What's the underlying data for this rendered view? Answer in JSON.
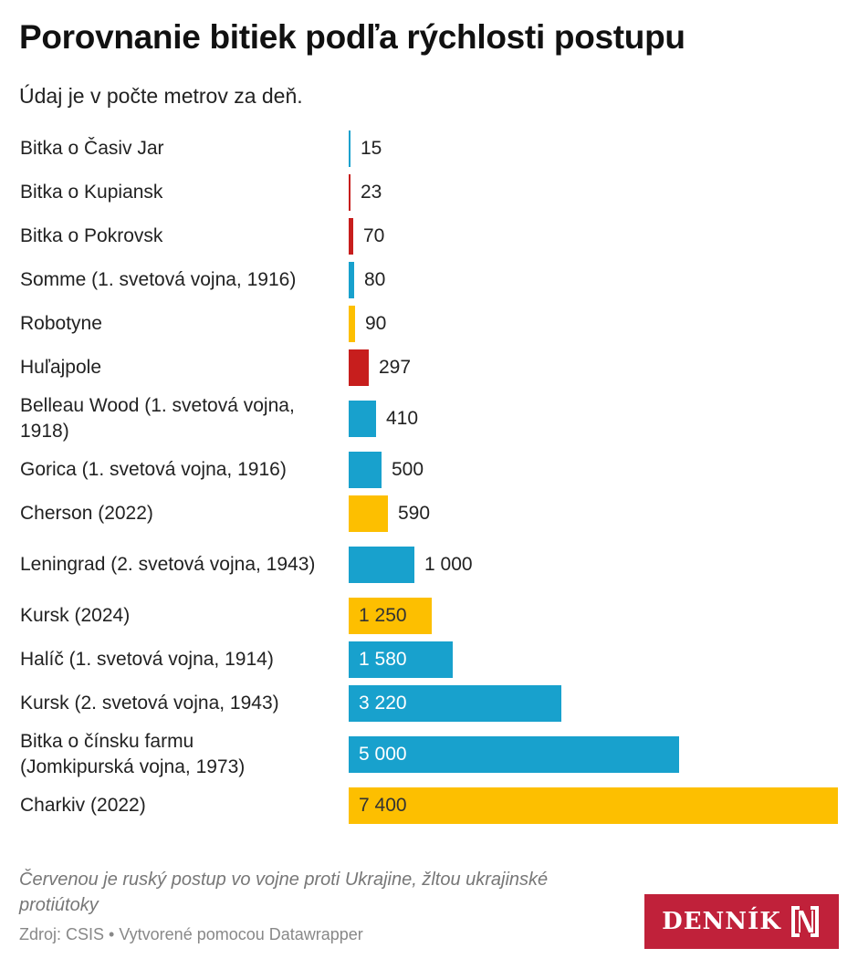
{
  "title": "Porovnanie bitiek podľa rýchlosti postupu",
  "subtitle": "Údaj je v počte metrov za deň.",
  "colors": {
    "blue": "#18a1cd",
    "red": "#c71e1d",
    "yellow": "#fdbf00"
  },
  "chart_data": {
    "type": "bar",
    "orientation": "horizontal",
    "title": "Porovnanie bitiek podľa rýchlosti postupu",
    "unit": "metre za deň",
    "categories": [
      "Bitka o Časiv Jar",
      "Bitka o Kupiansk",
      "Bitka o Pokrovsk",
      "Somme (1. svetová vojna, 1916)",
      "Robotyne",
      "Huľajpole",
      "Belleau Wood (1. svetová vojna, 1918)",
      "Gorica (1. svetová vojna, 1916)",
      "Cherson (2022)",
      "Leningrad (2. svetová vojna, 1943)",
      "Kursk (2024)",
      "Halíč (1. svetová vojna, 1914)",
      "Kursk (2. svetová vojna, 1943)",
      "Bitka o čínsku farmu (Jomkipurská vojna, 1973)",
      "Charkiv (2022)"
    ],
    "values": [
      15,
      23,
      70,
      80,
      90,
      297,
      410,
      500,
      590,
      1000,
      1250,
      1580,
      3220,
      5000,
      7400
    ],
    "value_labels": [
      "15",
      "23",
      "70",
      "80",
      "90",
      "297",
      "410",
      "500",
      "590",
      "1 000",
      "1 250",
      "1 580",
      "3 220",
      "5 000",
      "7 400"
    ],
    "groups": [
      "blue",
      "red",
      "red",
      "blue",
      "yellow",
      "red",
      "blue",
      "blue",
      "yellow",
      "blue",
      "yellow",
      "blue",
      "blue",
      "blue",
      "yellow"
    ],
    "xlim": [
      0,
      7400
    ]
  },
  "footer": {
    "note": "Červenou je ruský postup vo vojne proti Ukrajine, žltou ukrajinské protiútoky",
    "source": "Zdroj: CSIS • Vytvorené pomocou Datawrapper",
    "logo": "DENNÍK N"
  }
}
